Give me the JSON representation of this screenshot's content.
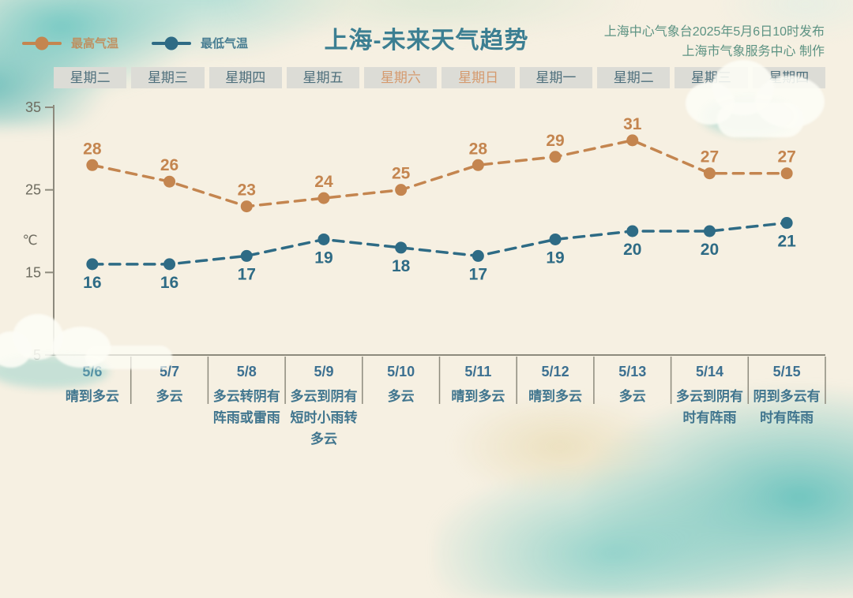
{
  "header": {
    "title": "上海-未来天气趋势",
    "publisher_line1": "上海中心气象台2025年5月6日10时发布",
    "publisher_line2": "上海市气象服务中心 制作"
  },
  "legend": {
    "items": [
      {
        "label": "最高气温",
        "color": "#c4854f"
      },
      {
        "label": "最低气温",
        "color": "#2e6b85"
      }
    ]
  },
  "chart_data": {
    "type": "line",
    "title": "上海-未来天气趋势",
    "line_style": "dashed",
    "grid": false,
    "legend_position": "top-left",
    "weekdays": [
      "星期二",
      "星期三",
      "星期四",
      "星期五",
      "星期六",
      "星期日",
      "星期一",
      "星期二",
      "星期三",
      "星期四"
    ],
    "weekend_indices": [
      4,
      5
    ],
    "dates": [
      "5/6",
      "5/7",
      "5/8",
      "5/9",
      "5/10",
      "5/11",
      "5/12",
      "5/13",
      "5/14",
      "5/15"
    ],
    "weather": [
      "晴到多云",
      "多云",
      "多云转阴有阵雨或雷雨",
      "多云到阴有短时小雨转多云",
      "多云",
      "晴到多云",
      "晴到多云",
      "多云",
      "多云到阴有时有阵雨",
      "阴到多云有时有阵雨"
    ],
    "series": [
      {
        "name": "最高气温",
        "color": "#c4854f",
        "label_position": "above",
        "values": [
          28,
          26,
          23,
          24,
          25,
          28,
          29,
          31,
          27,
          27
        ]
      },
      {
        "name": "最低气温",
        "color": "#2e6b85",
        "label_position": "below",
        "values": [
          16,
          16,
          17,
          19,
          18,
          17,
          19,
          20,
          20,
          21
        ]
      }
    ],
    "ylabel": "℃",
    "yticks": [
      35,
      25,
      15,
      5
    ],
    "ylim": [
      5,
      35
    ]
  },
  "colors": {
    "background": "#f6f0e2",
    "title": "#3c7f92",
    "publisher": "#5d9383",
    "weekday_box": "#dcdcd6",
    "weekday_text": "#4e6f7c",
    "weekend_text": "#d59a6e",
    "axis": "#8d8a7d",
    "axis_label": "#6e6c60",
    "date_text": "#3c7091",
    "weather_text": "#40758e",
    "watercolor": "#7ecac5"
  }
}
